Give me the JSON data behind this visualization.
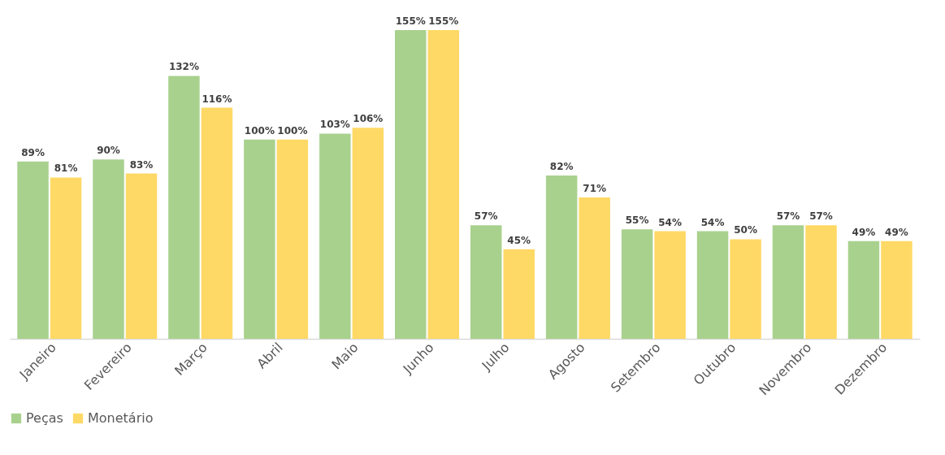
{
  "chart_data": {
    "type": "bar",
    "categories": [
      "Janeiro",
      "Fevereiro",
      "Março",
      "Abril",
      "Maio",
      "Junho",
      "Julho",
      "Agosto",
      "Setembro",
      "Outubro",
      "Novembro",
      "Dezembro"
    ],
    "series": [
      {
        "name": "Peças",
        "color": "#a9d18e",
        "values": [
          89,
          90,
          132,
          100,
          103,
          155,
          57,
          82,
          55,
          54,
          57,
          49
        ],
        "value_labels": [
          "89%",
          "90%",
          "132%",
          "100%",
          "103%",
          "155%",
          "57%",
          "82%",
          "55%",
          "54%",
          "57%",
          "49%"
        ]
      },
      {
        "name": "Monetário",
        "color": "#ffd966",
        "values": [
          81,
          83,
          116,
          100,
          106,
          155,
          45,
          71,
          54,
          50,
          57,
          49
        ],
        "value_labels": [
          "81%",
          "83%",
          "116%",
          "100%",
          "106%",
          "155%",
          "45%",
          "71%",
          "54%",
          "50%",
          "57%",
          "49%"
        ]
      }
    ],
    "legend": "bottom",
    "grid": false
  }
}
